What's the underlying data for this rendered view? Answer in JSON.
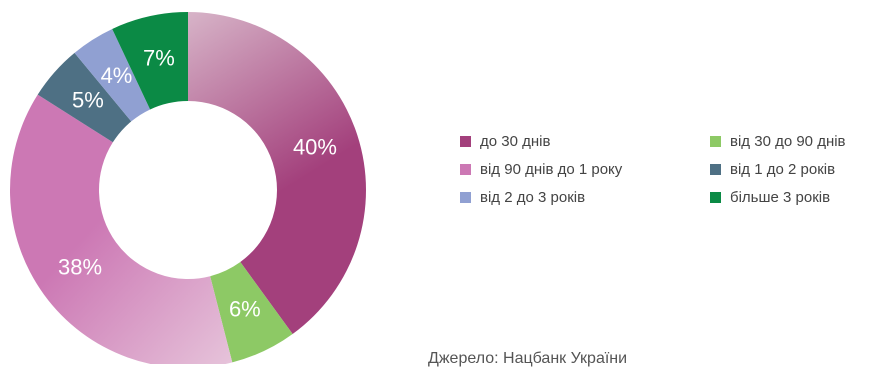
{
  "chart_data": {
    "type": "pie",
    "style": "donut",
    "categories": [
      "до 30 днів",
      "від 30 до 90 днів",
      "від 90 днів до 1 року",
      "від 1 до 2 років",
      "від 2 до 3 років",
      "більше 3 років"
    ],
    "values": [
      40,
      6,
      38,
      5,
      4,
      7
    ],
    "labels": [
      "40%",
      "6%",
      "38%",
      "5%",
      "4%",
      "7%"
    ],
    "legend_position": "right",
    "legend": [
      {
        "label": "до 30 днів",
        "color": "#a3407c"
      },
      {
        "label": "від 30 до 90 днів",
        "color": "#8dc965"
      },
      {
        "label": "від 90 днів до 1 року",
        "color": "#cc78b4"
      },
      {
        "label": "від 1 до 2 років",
        "color": "#4e7084"
      },
      {
        "label": "від 2 до 3 років",
        "color": "#90a0d2"
      },
      {
        "label": "більше 3 років",
        "color": "#0b8a45"
      }
    ],
    "colors": [
      "#a3407c",
      "#8dc965",
      "#cc78b4",
      "#4e7084",
      "#90a0d2",
      "#0b8a45"
    ],
    "gradient_light": [
      "#d7b4c8",
      "#8dc965",
      "#e6c3da",
      "#4e7084",
      "#90a0d2",
      "#0b8a45"
    ]
  },
  "footer_text": "Джерело: Нацбанк України"
}
